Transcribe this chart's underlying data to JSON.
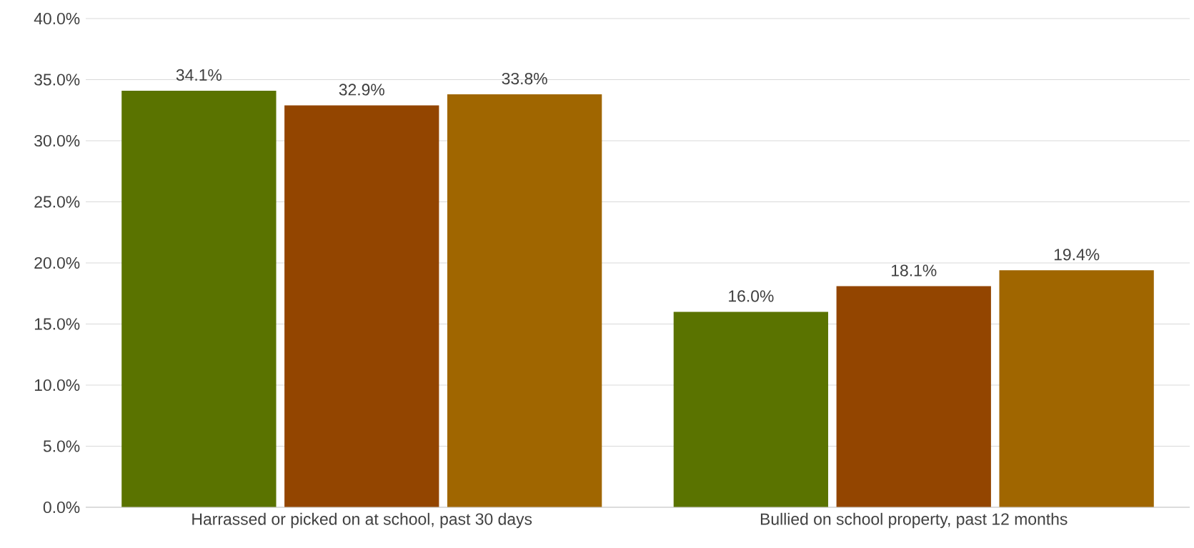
{
  "chart_data": {
    "type": "bar",
    "categories": [
      "Harrassed or picked on at school, past 30 days",
      "Bullied on school property, past 12 months"
    ],
    "series": [
      {
        "color": "#5a7300",
        "values": [
          34.1,
          16.0
        ],
        "value_labels": [
          "34.1%",
          "16.0%"
        ]
      },
      {
        "color": "#934500",
        "values": [
          32.9,
          18.1
        ],
        "value_labels": [
          "32.9%",
          "18.1%"
        ]
      },
      {
        "color": "#a06600",
        "values": [
          33.8,
          19.4
        ],
        "value_labels": [
          "33.8%",
          "19.4%"
        ]
      }
    ],
    "ylim": [
      0,
      40
    ],
    "yticks": [
      {
        "value": 0,
        "label": "0.0%"
      },
      {
        "value": 5,
        "label": "5.0%"
      },
      {
        "value": 10,
        "label": "10.0%"
      },
      {
        "value": 15,
        "label": "15.0%"
      },
      {
        "value": 20,
        "label": "20.0%"
      },
      {
        "value": 25,
        "label": "25.0%"
      },
      {
        "value": 30,
        "label": "30.0%"
      },
      {
        "value": 35,
        "label": "35.0%"
      },
      {
        "value": 40,
        "label": "40.0%"
      }
    ],
    "grid": "y"
  }
}
